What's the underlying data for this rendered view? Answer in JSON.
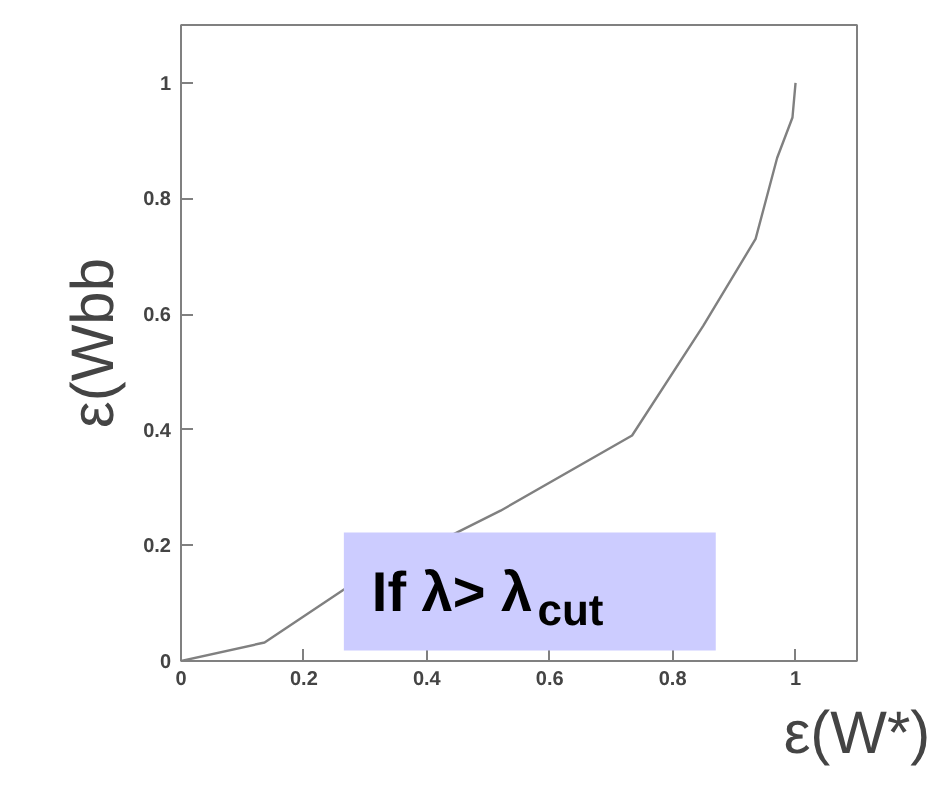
{
  "chart_data": {
    "type": "line",
    "xlabel": "ε(W*)",
    "ylabel": "ε(Wbb",
    "x": [
      0,
      0.136,
      0.27,
      0.52,
      0.734,
      0.85,
      0.935,
      0.97,
      0.995,
      1.0
    ],
    "series": [
      {
        "color": "#808080",
        "values": [
          0,
          0.032,
          0.127,
          0.26,
          0.39,
          0.58,
          0.73,
          0.87,
          0.94,
          1.0
        ]
      }
    ],
    "xlim": [
      0,
      1.1
    ],
    "ylim": [
      0,
      1.1
    ],
    "xticks": [
      0,
      0.2,
      0.4,
      0.6,
      0.8,
      1
    ],
    "yticks": [
      0,
      0.2,
      0.4,
      0.6,
      0.8,
      1
    ],
    "annotations": [
      "If λ> λ$_{cut}$"
    ],
    "grid": false,
    "marker": "none",
    "line_style": "solid"
  }
}
